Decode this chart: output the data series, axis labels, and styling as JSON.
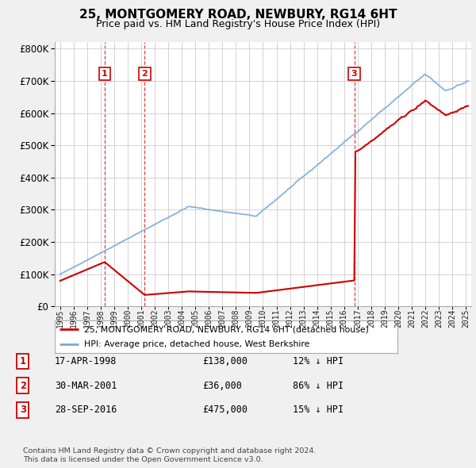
{
  "title": "25, MONTGOMERY ROAD, NEWBURY, RG14 6HT",
  "subtitle": "Price paid vs. HM Land Registry's House Price Index (HPI)",
  "legend_label_red": "25, MONTGOMERY ROAD, NEWBURY, RG14 6HT (detached house)",
  "legend_label_blue": "HPI: Average price, detached house, West Berkshire",
  "transactions": [
    {
      "num": 1,
      "date_str": "17-APR-1998",
      "price": 138000,
      "hpi_diff": "12% ↓ HPI",
      "year": 1998.29
    },
    {
      "num": 2,
      "date_str": "30-MAR-2001",
      "price": 36000,
      "hpi_diff": "86% ↓ HPI",
      "year": 2001.25
    },
    {
      "num": 3,
      "date_str": "28-SEP-2016",
      "price": 475000,
      "hpi_diff": "15% ↓ HPI",
      "year": 2016.75
    }
  ],
  "footnote1": "Contains HM Land Registry data © Crown copyright and database right 2024.",
  "footnote2": "This data is licensed under the Open Government Licence v3.0.",
  "ylim": [
    0,
    820000
  ],
  "yticks": [
    0,
    100000,
    200000,
    300000,
    400000,
    500000,
    600000,
    700000,
    800000
  ],
  "xlim_lo": 1994.6,
  "xlim_hi": 2025.4,
  "background_color": "#f0f0f0",
  "plot_bg_color": "#ffffff",
  "grid_color": "#cccccc",
  "red_color": "#cc0000",
  "blue_color": "#7aaadd",
  "num_box_color": "#cc0000"
}
